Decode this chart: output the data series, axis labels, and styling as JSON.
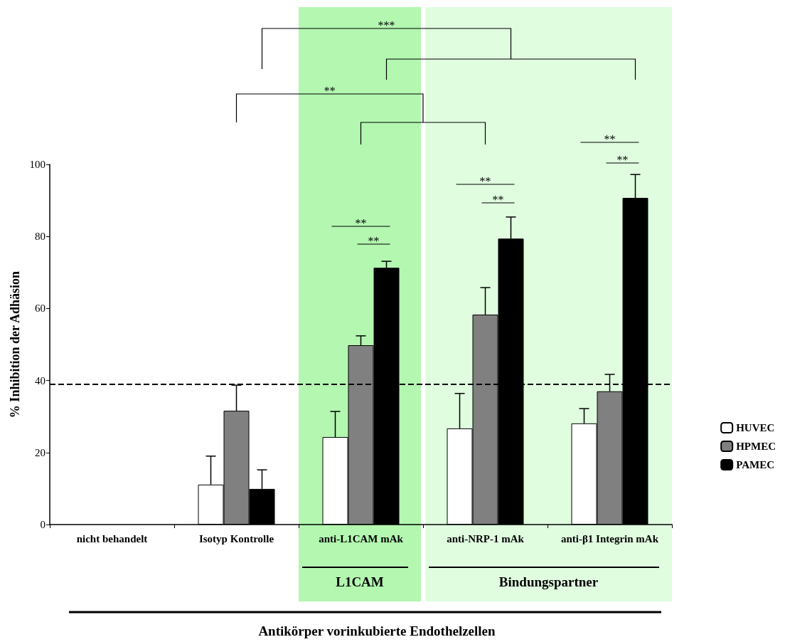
{
  "chart_data": {
    "type": "bar",
    "categories": [
      "nicht behandelt",
      "Isotyp Kontrolle",
      "anti-L1CAM mAk",
      "anti-NRP-1 mAk",
      "anti-β1 Integrin mAk"
    ],
    "series": [
      {
        "name": "HUVEC",
        "color": "#ffffff",
        "values": [
          null,
          11.1,
          24.3,
          26.7,
          28.1
        ],
        "errors": [
          null,
          [
            11.1,
            19
          ],
          [
            24.3,
            31.4
          ],
          [
            26.7,
            36.4
          ],
          [
            28.1,
            32.2
          ]
        ]
      },
      {
        "name": "HPMEC",
        "color": "#808080",
        "values": [
          null,
          31.6,
          49.8,
          58.3,
          37.0
        ],
        "errors": [
          null,
          [
            31.6,
            38.7
          ],
          [
            49.8,
            52.4
          ],
          [
            58.3,
            65.8
          ],
          [
            37.0,
            41.7
          ]
        ]
      },
      {
        "name": "PAMEC",
        "color": "#000000",
        "values": [
          null,
          9.9,
          71.3,
          79.4,
          90.7
        ],
        "errors": [
          null,
          [
            9.9,
            15.2
          ],
          [
            71.3,
            73.1
          ],
          [
            79.4,
            85.4
          ],
          [
            90.7,
            97.2
          ]
        ]
      }
    ],
    "ylabel": "% Inhibition der Adhäsion",
    "ylim": [
      0,
      100
    ],
    "yticks": [
      0,
      20,
      40,
      60,
      80,
      100
    ],
    "grid": false,
    "legend": "right",
    "ref_lines": [
      {
        "axis": "y",
        "value": 38.9,
        "line_style": "dashed",
        "color": "#000000"
      }
    ],
    "bands": [
      {
        "axis": "x",
        "from": "anti-L1CAM mAk",
        "to": "anti-L1CAM mAk",
        "label": "L1CAM",
        "color": "#b3f7b0"
      },
      {
        "axis": "x",
        "from": "anti-NRP-1 mAk",
        "to": "anti-β1 Integrin mAk",
        "label": "Bindungspartner",
        "color": "#e0fde0"
      }
    ],
    "annotations": [
      "***",
      "**",
      "**",
      "**",
      "**",
      "**",
      "**",
      "**",
      "Antikörper vorinkubierte Endothelzellen"
    ]
  }
}
